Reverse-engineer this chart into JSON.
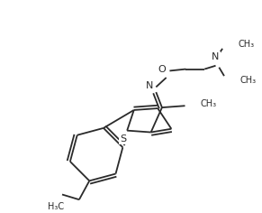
{
  "bg_color": "#ffffff",
  "line_color": "#2a2a2a",
  "line_width": 1.3,
  "font_size": 7.0,
  "figsize": [
    2.91,
    2.36
  ],
  "dpi": 100,
  "xlim": [
    0,
    291
  ],
  "ylim": [
    0,
    236
  ]
}
